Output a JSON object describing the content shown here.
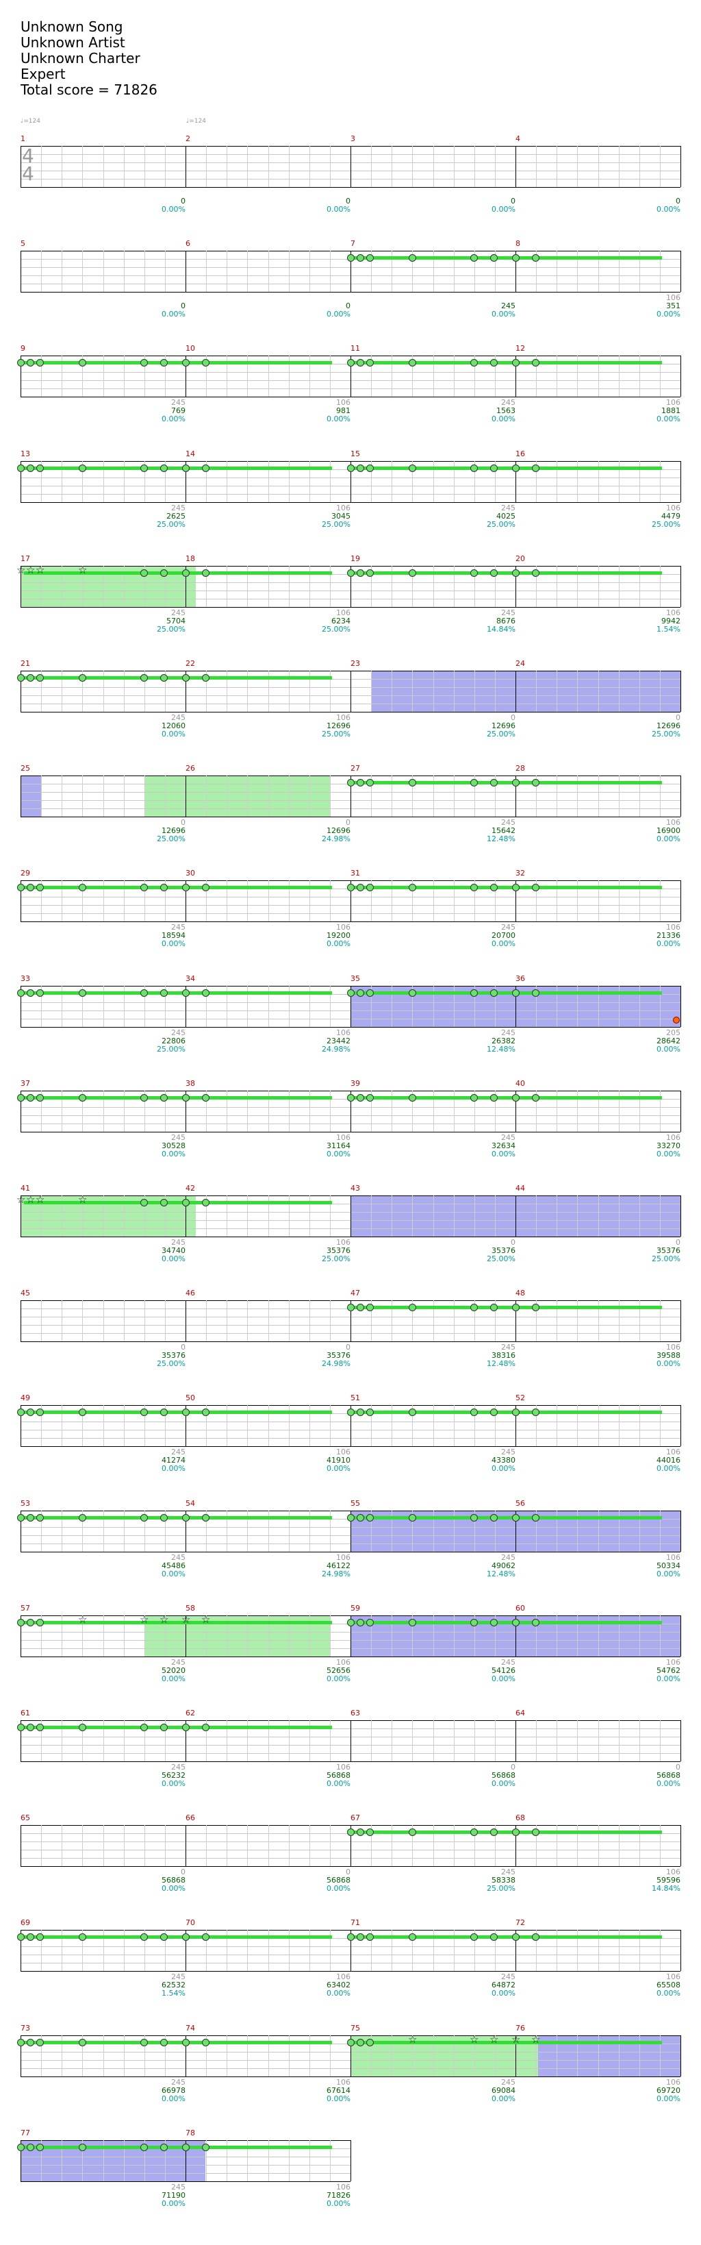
{
  "header": {
    "song": "Unknown Song",
    "artist": "Unknown Artist",
    "charter": "Unknown Charter",
    "difficulty": "Expert",
    "total_score": "Total score = 71826"
  },
  "tempo_marks": [
    "♩=124",
    "♩=124"
  ],
  "time_signature": {
    "top": "4",
    "bottom": "4"
  },
  "measures": [
    {
      "n": "1",
      "bpm": "",
      "score": "0",
      "pct": "0.00%"
    },
    {
      "n": "2",
      "bpm": "",
      "score": "0",
      "pct": "0.00%"
    },
    {
      "n": "3",
      "bpm": "",
      "score": "0",
      "pct": "0.00%"
    },
    {
      "n": "4",
      "bpm": "",
      "score": "0",
      "pct": "0.00%"
    },
    {
      "n": "5",
      "bpm": "",
      "score": "0",
      "pct": "0.00%"
    },
    {
      "n": "6",
      "bpm": "",
      "score": "0",
      "pct": "0.00%"
    },
    {
      "n": "7",
      "bpm": "",
      "score": "245",
      "pct": "0.00%"
    },
    {
      "n": "8",
      "bpm": "106",
      "score": "351",
      "pct": "0.00%"
    },
    {
      "n": "9",
      "bpm": "245",
      "score": "769",
      "pct": "0.00%"
    },
    {
      "n": "10",
      "bpm": "106",
      "score": "981",
      "pct": "0.00%"
    },
    {
      "n": "11",
      "bpm": "245",
      "score": "1563",
      "pct": "0.00%"
    },
    {
      "n": "12",
      "bpm": "106",
      "score": "1881",
      "pct": "0.00%"
    },
    {
      "n": "13",
      "bpm": "245",
      "score": "2625",
      "pct": "25.00%"
    },
    {
      "n": "14",
      "bpm": "106",
      "score": "3045",
      "pct": "25.00%"
    },
    {
      "n": "15",
      "bpm": "245",
      "score": "4025",
      "pct": "25.00%"
    },
    {
      "n": "16",
      "bpm": "106",
      "score": "4479",
      "pct": "25.00%"
    },
    {
      "n": "17",
      "bpm": "245",
      "score": "5704",
      "pct": "25.00%"
    },
    {
      "n": "18",
      "bpm": "106",
      "score": "6234",
      "pct": "25.00%"
    },
    {
      "n": "19",
      "bpm": "245",
      "score": "8676",
      "pct": "14.84%"
    },
    {
      "n": "20",
      "bpm": "106",
      "score": "9942",
      "pct": "1.54%"
    },
    {
      "n": "21",
      "bpm": "245",
      "score": "12060",
      "pct": "0.00%"
    },
    {
      "n": "22",
      "bpm": "106",
      "score": "12696",
      "pct": "25.00%"
    },
    {
      "n": "23",
      "bpm": "0",
      "score": "12696",
      "pct": "25.00%"
    },
    {
      "n": "24",
      "bpm": "0",
      "score": "12696",
      "pct": "25.00%"
    },
    {
      "n": "25",
      "bpm": "0",
      "score": "12696",
      "pct": "25.00%"
    },
    {
      "n": "26",
      "bpm": "0",
      "score": "12696",
      "pct": "24.98%"
    },
    {
      "n": "27",
      "bpm": "245",
      "score": "15642",
      "pct": "12.48%"
    },
    {
      "n": "28",
      "bpm": "106",
      "score": "16900",
      "pct": "0.00%"
    },
    {
      "n": "29",
      "bpm": "245",
      "score": "18594",
      "pct": "0.00%"
    },
    {
      "n": "30",
      "bpm": "106",
      "score": "19200",
      "pct": "0.00%"
    },
    {
      "n": "31",
      "bpm": "245",
      "score": "20700",
      "pct": "0.00%"
    },
    {
      "n": "32",
      "bpm": "106",
      "score": "21336",
      "pct": "0.00%"
    },
    {
      "n": "33",
      "bpm": "245",
      "score": "22806",
      "pct": "25.00%"
    },
    {
      "n": "34",
      "bpm": "106",
      "score": "23442",
      "pct": "24.98%"
    },
    {
      "n": "35",
      "bpm": "245",
      "score": "26382",
      "pct": "12.48%"
    },
    {
      "n": "36",
      "bpm": "205",
      "score": "28642",
      "pct": "0.00%"
    },
    {
      "n": "37",
      "bpm": "245",
      "score": "30528",
      "pct": "0.00%"
    },
    {
      "n": "38",
      "bpm": "106",
      "score": "31164",
      "pct": "0.00%"
    },
    {
      "n": "39",
      "bpm": "245",
      "score": "32634",
      "pct": "0.00%"
    },
    {
      "n": "40",
      "bpm": "106",
      "score": "33270",
      "pct": "0.00%"
    },
    {
      "n": "41",
      "bpm": "245",
      "score": "34740",
      "pct": "0.00%"
    },
    {
      "n": "42",
      "bpm": "106",
      "score": "35376",
      "pct": "25.00%"
    },
    {
      "n": "43",
      "bpm": "0",
      "score": "35376",
      "pct": "25.00%"
    },
    {
      "n": "44",
      "bpm": "0",
      "score": "35376",
      "pct": "25.00%"
    },
    {
      "n": "45",
      "bpm": "0",
      "score": "35376",
      "pct": "25.00%"
    },
    {
      "n": "46",
      "bpm": "0",
      "score": "35376",
      "pct": "24.98%"
    },
    {
      "n": "47",
      "bpm": "245",
      "score": "38316",
      "pct": "12.48%"
    },
    {
      "n": "48",
      "bpm": "106",
      "score": "39588",
      "pct": "0.00%"
    },
    {
      "n": "49",
      "bpm": "245",
      "score": "41274",
      "pct": "0.00%"
    },
    {
      "n": "50",
      "bpm": "106",
      "score": "41910",
      "pct": "0.00%"
    },
    {
      "n": "51",
      "bpm": "245",
      "score": "43380",
      "pct": "0.00%"
    },
    {
      "n": "52",
      "bpm": "106",
      "score": "44016",
      "pct": "0.00%"
    },
    {
      "n": "53",
      "bpm": "245",
      "score": "45486",
      "pct": "0.00%"
    },
    {
      "n": "54",
      "bpm": "106",
      "score": "46122",
      "pct": "24.98%"
    },
    {
      "n": "55",
      "bpm": "245",
      "score": "49062",
      "pct": "12.48%"
    },
    {
      "n": "56",
      "bpm": "106",
      "score": "50334",
      "pct": "0.00%"
    },
    {
      "n": "57",
      "bpm": "245",
      "score": "52020",
      "pct": "0.00%"
    },
    {
      "n": "58",
      "bpm": "106",
      "score": "52656",
      "pct": "0.00%"
    },
    {
      "n": "59",
      "bpm": "245",
      "score": "54126",
      "pct": "0.00%"
    },
    {
      "n": "60",
      "bpm": "106",
      "score": "54762",
      "pct": "0.00%"
    },
    {
      "n": "61",
      "bpm": "245",
      "score": "56232",
      "pct": "0.00%"
    },
    {
      "n": "62",
      "bpm": "106",
      "score": "56868",
      "pct": "0.00%"
    },
    {
      "n": "63",
      "bpm": "0",
      "score": "56868",
      "pct": "0.00%"
    },
    {
      "n": "64",
      "bpm": "0",
      "score": "56868",
      "pct": "0.00%"
    },
    {
      "n": "65",
      "bpm": "0",
      "score": "56868",
      "pct": "0.00%"
    },
    {
      "n": "66",
      "bpm": "0",
      "score": "56868",
      "pct": "0.00%"
    },
    {
      "n": "67",
      "bpm": "245",
      "score": "58338",
      "pct": "25.00%"
    },
    {
      "n": "68",
      "bpm": "106",
      "score": "59596",
      "pct": "14.84%"
    },
    {
      "n": "69",
      "bpm": "245",
      "score": "62532",
      "pct": "1.54%"
    },
    {
      "n": "70",
      "bpm": "106",
      "score": "63402",
      "pct": "0.00%"
    },
    {
      "n": "71",
      "bpm": "245",
      "score": "64872",
      "pct": "0.00%"
    },
    {
      "n": "72",
      "bpm": "106",
      "score": "65508",
      "pct": "0.00%"
    },
    {
      "n": "73",
      "bpm": "245",
      "score": "66978",
      "pct": "0.00%"
    },
    {
      "n": "74",
      "bpm": "106",
      "score": "67614",
      "pct": "0.00%"
    },
    {
      "n": "75",
      "bpm": "245",
      "score": "69084",
      "pct": "0.00%"
    },
    {
      "n": "76",
      "bpm": "106",
      "score": "69720",
      "pct": "0.00%"
    },
    {
      "n": "77",
      "bpm": "245",
      "score": "71190",
      "pct": "0.00%"
    },
    {
      "n": "78",
      "bpm": "106",
      "score": "71826",
      "pct": "0.00%"
    }
  ],
  "colors": {
    "measure_number": "#cc0000",
    "score": "#006000",
    "percent": "#00a0a0",
    "note": "#6be36b",
    "sustain": "#33dd33",
    "overdrive_active": "#0000cd",
    "star_power_phrase": "#00cd00"
  }
}
